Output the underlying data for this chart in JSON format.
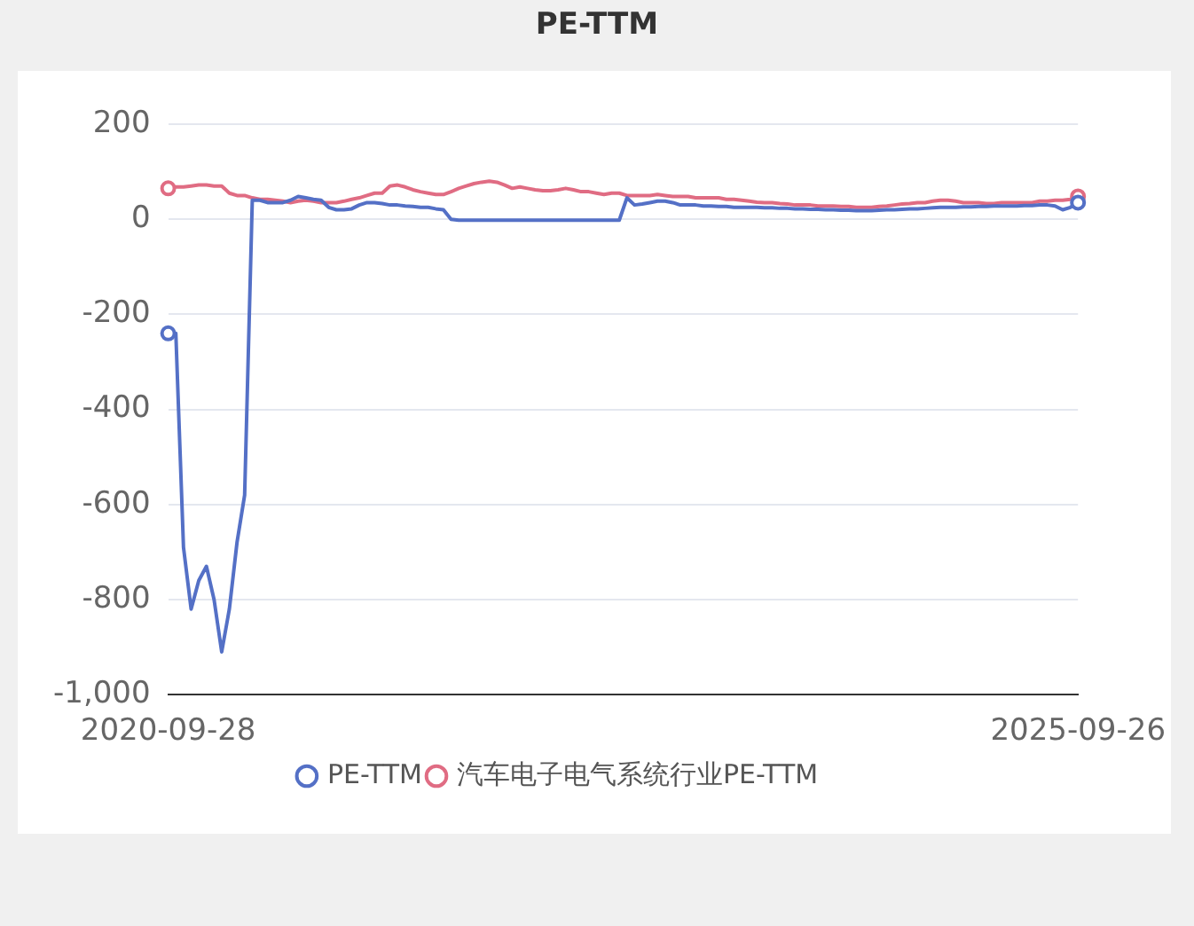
{
  "chart_data": {
    "type": "line",
    "title": "PE-TTM",
    "categories": [
      "2020-09-28",
      null,
      null,
      null,
      null,
      null,
      null,
      null,
      null,
      null,
      null,
      null,
      null,
      null,
      null,
      null,
      null,
      null,
      null,
      null,
      null,
      null,
      null,
      null,
      null,
      null,
      null,
      null,
      null,
      null,
      null,
      null,
      null,
      null,
      null,
      null,
      null,
      null,
      null,
      null,
      null,
      null,
      null,
      null,
      null,
      null,
      null,
      null,
      null,
      null,
      null,
      null,
      null,
      null,
      null,
      null,
      null,
      null,
      null,
      null,
      null,
      null,
      null,
      null,
      null,
      null,
      null,
      null,
      null,
      null,
      null,
      null,
      null,
      null,
      null,
      null,
      null,
      null,
      null,
      null,
      null,
      null,
      null,
      null,
      null,
      null,
      null,
      null,
      null,
      null,
      null,
      null,
      null,
      null,
      null,
      null,
      null,
      null,
      null,
      null,
      null,
      null,
      null,
      null,
      null,
      null,
      null,
      null,
      null,
      null,
      null,
      null,
      null,
      null,
      null,
      null,
      null,
      null,
      null,
      "2025-09-26"
    ],
    "series": [
      {
        "name": "PE-TTM",
        "color": "#5470c6",
        "values": [
          -240,
          -240,
          -690,
          -820,
          -760,
          -730,
          -800,
          -910,
          -820,
          -680,
          -580,
          40,
          40,
          35,
          35,
          35,
          40,
          48,
          45,
          42,
          40,
          25,
          20,
          20,
          22,
          30,
          35,
          35,
          33,
          30,
          30,
          28,
          27,
          25,
          25,
          22,
          20,
          0,
          -2,
          -2,
          -2,
          -2,
          -2,
          -2,
          -2,
          -2,
          -2,
          -2,
          -2,
          -2,
          -2,
          -2,
          -2,
          -2,
          -2,
          -2,
          -2,
          -2,
          -2,
          -2,
          45,
          30,
          32,
          35,
          38,
          38,
          35,
          30,
          30,
          30,
          28,
          28,
          27,
          27,
          25,
          25,
          25,
          25,
          24,
          24,
          23,
          23,
          22,
          22,
          21,
          21,
          20,
          20,
          19,
          19,
          18,
          18,
          18,
          19,
          20,
          20,
          21,
          22,
          22,
          23,
          24,
          25,
          25,
          25,
          26,
          26,
          27,
          27,
          28,
          28,
          28,
          28,
          29,
          29,
          30,
          30,
          28,
          20,
          25,
          35
        ]
      },
      {
        "name": "汽车电子电气系统行业PE-TTM",
        "color": "#e06c83",
        "values": [
          65,
          68,
          68,
          70,
          72,
          72,
          70,
          70,
          55,
          50,
          50,
          45,
          42,
          42,
          40,
          38,
          35,
          38,
          40,
          38,
          35,
          35,
          35,
          38,
          42,
          45,
          50,
          55,
          55,
          70,
          72,
          68,
          62,
          58,
          55,
          52,
          52,
          58,
          65,
          70,
          75,
          78,
          80,
          78,
          72,
          65,
          68,
          65,
          62,
          60,
          60,
          62,
          65,
          62,
          58,
          58,
          55,
          52,
          55,
          55,
          50,
          50,
          50,
          50,
          52,
          50,
          48,
          48,
          48,
          45,
          45,
          45,
          45,
          42,
          42,
          40,
          38,
          36,
          35,
          35,
          33,
          32,
          30,
          30,
          30,
          28,
          28,
          28,
          27,
          27,
          25,
          25,
          25,
          27,
          28,
          30,
          32,
          33,
          35,
          35,
          38,
          40,
          40,
          38,
          35,
          35,
          35,
          33,
          33,
          35,
          35,
          35,
          35,
          35,
          38,
          38,
          40,
          40,
          42,
          48
        ]
      }
    ],
    "ylim": [
      -1000,
      200
    ],
    "yticks": [
      {
        "value": -1000,
        "label": "-1,000"
      },
      -800,
      -600,
      -400,
      -200,
      0,
      200
    ],
    "grid": "y",
    "legend": "bottom",
    "line_style": "solid"
  }
}
